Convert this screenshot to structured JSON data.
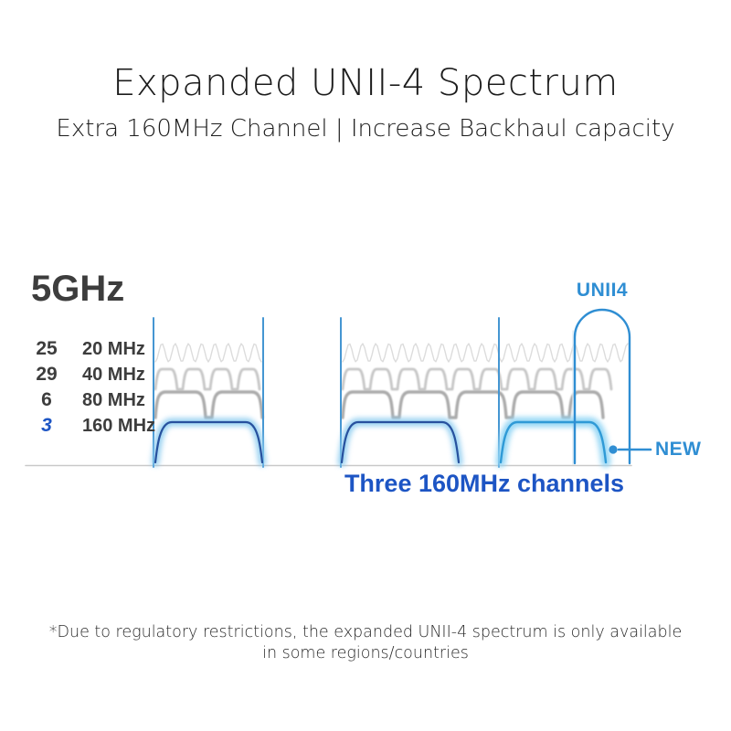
{
  "header": {
    "title": "Expanded UNII-4 Spectrum",
    "subtitle": "Extra 160MHz Channel | Increase Backhaul capacity"
  },
  "diagram": {
    "band_label": "5GHz",
    "channels": [
      {
        "count": "25",
        "bandwidth": "20 MHz"
      },
      {
        "count": "29",
        "bandwidth": "40 MHz"
      },
      {
        "count": "6",
        "bandwidth": "80 MHz"
      },
      {
        "count": "3",
        "bandwidth": "160 MHz"
      }
    ],
    "unii4_label": "UNII4",
    "new_label": "NEW",
    "caption": "Three 160MHz channels"
  },
  "footnote": {
    "line1": "*Due to regulatory restrictions, the expanded UNII-4 spectrum is only available",
    "line2": "in some regions/countries"
  },
  "colors": {
    "accent_blue": "#2f8ed3",
    "royal_blue": "#1d55c4",
    "navy_line": "#27519e",
    "glow_blue": "#8fcdf0",
    "new_line": "#2f9ad6",
    "new_glow": "#93d6f5",
    "boundary_line": "#4596d2",
    "boundary_glow": "#b7e0f6",
    "wave20": "#dcdcdc",
    "wave40": "#c6c6c6",
    "wave80": "#ababab",
    "baseline_gray": "#c9c9c9",
    "text_dark": "#3d3d3d"
  }
}
